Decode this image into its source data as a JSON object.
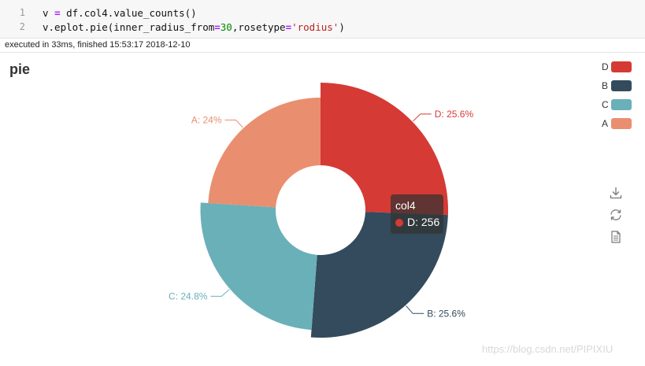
{
  "code_cell": {
    "lines": [
      {
        "number": "1",
        "tokens": [
          {
            "text": "v ",
            "cls": ""
          },
          {
            "text": "=",
            "cls": "op"
          },
          {
            "text": " df.col4.value_counts()",
            "cls": ""
          }
        ]
      },
      {
        "number": "2",
        "tokens": [
          {
            "text": "v.eplot.pie(inner_radius_from",
            "cls": ""
          },
          {
            "text": "=",
            "cls": "op"
          },
          {
            "text": "30",
            "cls": "num"
          },
          {
            "text": ",rosetype",
            "cls": ""
          },
          {
            "text": "=",
            "cls": "op"
          },
          {
            "text": "'rodius'",
            "cls": "str"
          },
          {
            "text": ")",
            "cls": ""
          }
        ]
      }
    ]
  },
  "status": {
    "text": "executed in 33ms, finished 15:53:17 2018-12-10"
  },
  "chart_data": {
    "type": "pie",
    "title": "pie",
    "rosetype": "radius",
    "inner_radius_percent": 30,
    "legend_position": "top-right",
    "slices": [
      {
        "name": "D",
        "value": 256,
        "percent": 25.6,
        "label": "D: 25.6%",
        "color": "#d53a35"
      },
      {
        "name": "B",
        "value": 256,
        "percent": 25.6,
        "label": "B: 25.6%",
        "color": "#334b5c"
      },
      {
        "name": "C",
        "value": 248,
        "percent": 24.8,
        "label": "C: 24.8%",
        "color": "#6ab0b8"
      },
      {
        "name": "A",
        "value": 240,
        "percent": 24.0,
        "label": "A: 24%",
        "color": "#e98f6f"
      }
    ]
  },
  "legend": {
    "items": [
      {
        "name": "D",
        "color": "#d53a35"
      },
      {
        "name": "B",
        "color": "#334b5c"
      },
      {
        "name": "C",
        "color": "#6ab0b8"
      },
      {
        "name": "A",
        "color": "#e98f6f"
      }
    ]
  },
  "tooltip": {
    "title": "col4",
    "value_text": "D: 256",
    "color": "#d53a35"
  },
  "toolbox": {
    "icons": [
      "download-icon",
      "refresh-icon",
      "data-view-icon"
    ]
  },
  "watermark": "https://blog.csdn.net/PIPIXIU"
}
